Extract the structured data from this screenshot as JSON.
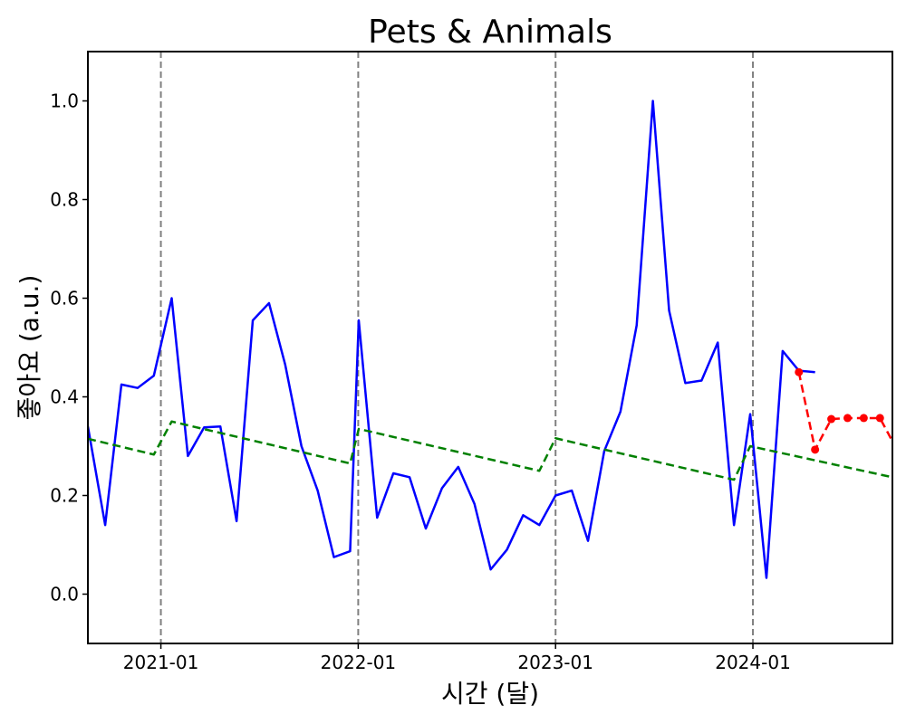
{
  "chart_data": {
    "type": "line",
    "title": "Pets & Animals",
    "xlabel": "시간 (달)",
    "ylabel": "좋아요 (a.u.)",
    "xlim": [
      "2020-08-19",
      "2024-09-15"
    ],
    "ylim": [
      -0.1,
      1.1
    ],
    "x_ticks": [
      "2021-01",
      "2022-01",
      "2023-01",
      "2024-01"
    ],
    "y_ticks": [
      "0.0",
      "0.2",
      "0.4",
      "0.6",
      "0.8",
      "1.0"
    ],
    "year_markers": [
      "2021-01-01",
      "2022-01-01",
      "2023-01-01",
      "2024-01-01"
    ],
    "grid": false,
    "series": [
      {
        "style": "solid",
        "color": "#0000ff",
        "x": [
          "2020-08-19",
          "2020-09-20",
          "2020-10-20",
          "2020-11-19",
          "2020-12-19",
          "2021-01-21",
          "2021-02-20",
          "2021-03-22",
          "2021-04-21",
          "2021-05-21",
          "2021-06-20",
          "2021-07-20",
          "2021-08-19",
          "2021-09-18",
          "2021-10-18",
          "2021-11-17",
          "2021-12-17",
          "2022-01-02",
          "2022-02-05",
          "2022-03-07",
          "2022-04-06",
          "2022-05-06",
          "2022-06-05",
          "2022-07-05",
          "2022-08-04",
          "2022-09-03",
          "2022-10-03",
          "2022-11-02",
          "2022-12-02",
          "2023-01-01",
          "2023-01-31",
          "2023-03-02",
          "2023-04-01",
          "2023-05-01",
          "2023-05-31",
          "2023-06-30",
          "2023-07-30",
          "2023-08-29",
          "2023-09-28",
          "2023-10-28",
          "2023-11-27",
          "2023-12-27",
          "2024-01-26",
          "2024-02-25",
          "2024-03-26",
          "2024-04-25"
        ],
        "values": [
          0.34,
          0.14,
          0.425,
          0.418,
          0.443,
          0.6,
          0.28,
          0.338,
          0.34,
          0.148,
          0.555,
          0.59,
          0.465,
          0.3,
          0.21,
          0.075,
          0.087,
          0.555,
          0.155,
          0.245,
          0.237,
          0.133,
          0.215,
          0.258,
          0.183,
          0.05,
          0.09,
          0.16,
          0.14,
          0.2,
          0.21,
          0.108,
          0.29,
          0.37,
          0.545,
          1.0,
          0.575,
          0.428,
          0.433,
          0.51,
          0.14,
          0.365,
          0.033,
          0.493,
          0.453,
          0.45
        ]
      },
      {
        "style": "dashed",
        "color": "#008000",
        "x": [
          "2020-08-19",
          "2020-12-19",
          "2021-01-21",
          "2021-12-17",
          "2022-01-02",
          "2022-12-02",
          "2023-01-01",
          "2023-11-27",
          "2023-12-27",
          "2024-09-15"
        ],
        "values": [
          0.315,
          0.283,
          0.35,
          0.265,
          0.335,
          0.25,
          0.316,
          0.232,
          0.3,
          0.237
        ]
      },
      {
        "style": "dashed-markers",
        "color": "#ff0000",
        "x": [
          "2024-03-26",
          "2024-04-25",
          "2024-05-25",
          "2024-06-24",
          "2024-07-24",
          "2024-08-23",
          "2024-09-15"
        ],
        "values": [
          0.45,
          0.293,
          0.355,
          0.357,
          0.357,
          0.357,
          0.31
        ],
        "markers": [
          true,
          true,
          true,
          true,
          true,
          true,
          false
        ]
      }
    ]
  }
}
